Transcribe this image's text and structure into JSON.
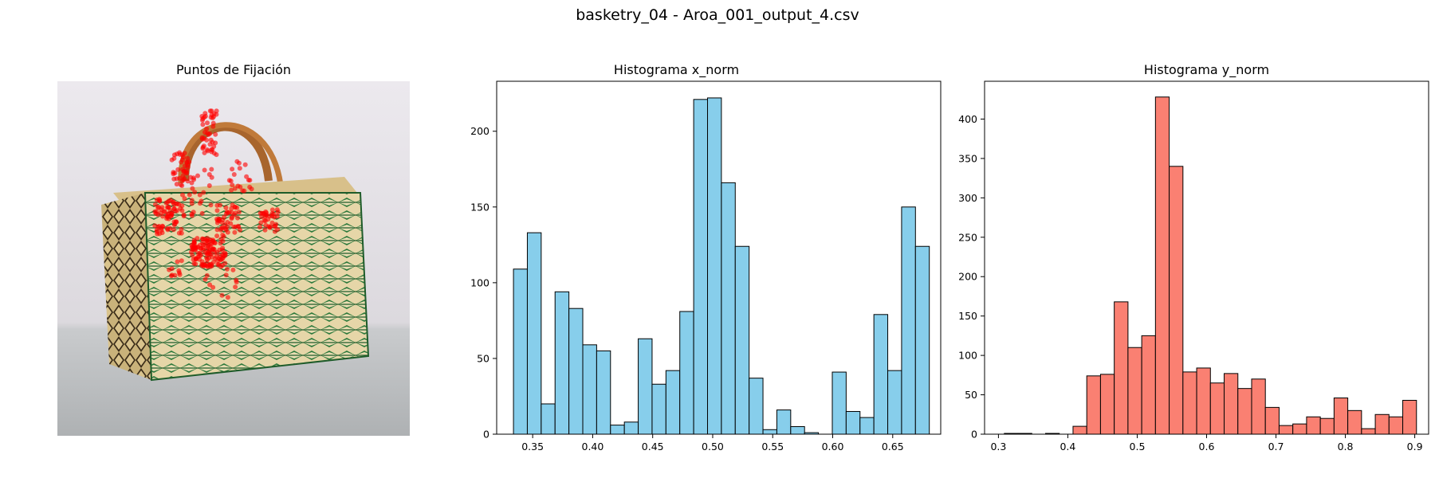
{
  "figure": {
    "suptitle": "basketry_04 - Aroa_001_output_4.csv"
  },
  "image_panel": {
    "title": "Puntos de Fijación",
    "fixation_color": "#ff0000"
  },
  "chart_data": [
    {
      "type": "bar",
      "title": "Histograma x_norm",
      "xlabel": "",
      "ylabel": "",
      "bar_color": "#87ceeb",
      "edge_color": "#000000",
      "xlim": [
        0.32,
        0.69
      ],
      "ylim": [
        0,
        233
      ],
      "x_ticks": [
        0.35,
        0.4,
        0.45,
        0.5,
        0.55,
        0.6,
        0.65
      ],
      "x_tick_labels": [
        "0.35",
        "0.40",
        "0.45",
        "0.50",
        "0.55",
        "0.60",
        "0.65"
      ],
      "y_ticks": [
        0,
        50,
        100,
        150,
        200
      ],
      "y_tick_labels": [
        "0",
        "50",
        "100",
        "150",
        "200"
      ],
      "bin_start": 0.334,
      "bin_width": 0.01155,
      "values": [
        109,
        133,
        20,
        94,
        83,
        59,
        55,
        6,
        8,
        63,
        33,
        42,
        81,
        221,
        222,
        166,
        124,
        37,
        3,
        16,
        5,
        1,
        0,
        41,
        15,
        11,
        79,
        42,
        150,
        124
      ]
    },
    {
      "type": "bar",
      "title": "Histograma y_norm",
      "xlabel": "",
      "ylabel": "",
      "bar_color": "#fa8072",
      "edge_color": "#000000",
      "xlim": [
        0.28,
        0.92
      ],
      "ylim": [
        0,
        448
      ],
      "x_ticks": [
        0.3,
        0.4,
        0.5,
        0.6,
        0.7,
        0.8,
        0.9
      ],
      "x_tick_labels": [
        "0.3",
        "0.4",
        "0.5",
        "0.6",
        "0.7",
        "0.8",
        "0.9"
      ],
      "y_ticks": [
        0,
        50,
        100,
        150,
        200,
        250,
        300,
        350,
        400
      ],
      "y_tick_labels": [
        "0",
        "50",
        "100",
        "150",
        "200",
        "250",
        "300",
        "350",
        "400"
      ],
      "bin_start": 0.3085,
      "bin_width": 0.0198,
      "values": [
        1,
        1,
        0,
        1,
        0,
        10,
        74,
        76,
        168,
        110,
        125,
        428,
        340,
        79,
        84,
        65,
        77,
        58,
        70,
        34,
        11,
        13,
        22,
        20,
        46,
        30,
        7,
        25,
        22,
        43
      ]
    }
  ]
}
